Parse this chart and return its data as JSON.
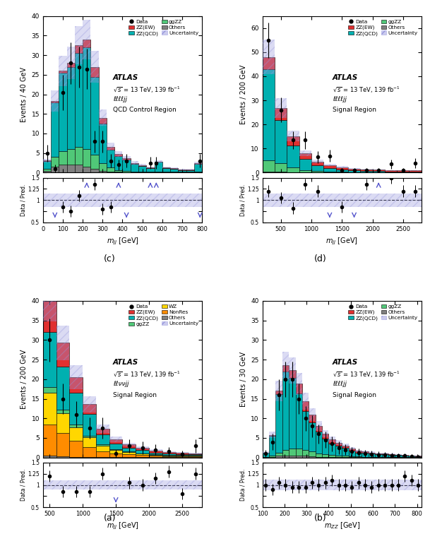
{
  "panel_a": {
    "title": "QCD Control Region",
    "xlabel": "$m_{jj}$ [GeV]",
    "ylabel": "Events / 40 GeV",
    "label_text": "ℓℓℓℓjj",
    "xlim": [
      0,
      800
    ],
    "ylim": [
      0,
      40
    ],
    "ratio_ylim": [
      0.5,
      1.5
    ],
    "bin_edges": [
      0,
      40,
      80,
      120,
      160,
      200,
      240,
      280,
      320,
      360,
      400,
      440,
      480,
      520,
      560,
      600,
      640,
      680,
      720,
      760,
      800
    ],
    "ZZ_QCD": [
      2.0,
      14.0,
      20.0,
      21.0,
      24.0,
      26.0,
      20.0,
      10.0,
      4.5,
      3.5,
      3.0,
      2.0,
      1.5,
      1.0,
      2.5,
      1.0,
      0.8,
      0.5,
      0.5,
      2.0
    ],
    "ZZ_EW": [
      0.1,
      0.3,
      0.5,
      1.0,
      2.0,
      2.0,
      2.5,
      1.5,
      0.8,
      0.5,
      0.3,
      0.2,
      0.2,
      0.1,
      0.1,
      0.1,
      0.1,
      0.1,
      0.1,
      0.2
    ],
    "ggZZ": [
      0.5,
      2.5,
      3.5,
      4.0,
      4.5,
      4.5,
      3.5,
      2.0,
      1.0,
      0.5,
      0.3,
      0.2,
      0.1,
      0.1,
      0.1,
      0.1,
      0.1,
      0.1,
      0.1,
      0.1
    ],
    "Others": [
      0.5,
      1.5,
      2.0,
      2.0,
      2.0,
      1.5,
      1.0,
      0.5,
      0.3,
      0.2,
      0.1,
      0.1,
      0.1,
      0.1,
      0.1,
      0.1,
      0.1,
      0.1,
      0.1,
      0.1
    ],
    "data_x": [
      20,
      60,
      100,
      140,
      180,
      220,
      260,
      300,
      340,
      380,
      420,
      540,
      570,
      790
    ],
    "data_y": [
      5.0,
      1.0,
      20.5,
      28.0,
      27.0,
      26.5,
      8.0,
      8.0,
      3.0,
      2.0,
      3.0,
      2.5,
      2.5,
      3.0
    ],
    "data_yerr": [
      2.2,
      1.0,
      4.5,
      5.3,
      5.2,
      5.2,
      2.8,
      2.8,
      1.7,
      1.4,
      1.7,
      1.6,
      1.6,
      1.7
    ],
    "ratio_x": [
      20,
      60,
      100,
      140,
      180,
      220,
      260,
      300,
      340,
      380,
      420,
      540,
      570,
      790
    ],
    "ratio_y": [
      1.6,
      0.6,
      0.85,
      0.75,
      1.1,
      1.25,
      1.35,
      0.8,
      0.85,
      0.65,
      1.5,
      1.5,
      1.5,
      0.6
    ],
    "ratio_up": [
      220,
      380,
      540,
      570
    ],
    "ratio_down": [
      60,
      420,
      790
    ],
    "unc_band_lo": 0.85,
    "unc_band_hi": 1.15
  },
  "panel_b": {
    "title": "Signal Region",
    "xlabel": "$m_{jj}$ [GeV]",
    "ylabel": "Events / 200 GeV",
    "label_text": "ℓℓℓℓjj",
    "xlim": [
      200,
      2800
    ],
    "ylim": [
      0,
      65
    ],
    "ratio_ylim": [
      0.5,
      1.5
    ],
    "bin_edges": [
      200,
      400,
      600,
      800,
      1000,
      1200,
      1400,
      1600,
      1800,
      2000,
      2200,
      2400,
      2600,
      2800
    ],
    "ZZ_QCD": [
      38.0,
      18.0,
      9.0,
      4.5,
      2.5,
      1.5,
      1.0,
      0.7,
      0.5,
      0.4,
      0.3,
      0.3,
      0.3
    ],
    "ZZ_EW": [
      5.0,
      5.0,
      4.0,
      2.5,
      1.5,
      1.2,
      1.0,
      0.8,
      0.7,
      0.6,
      0.5,
      0.5,
      0.5
    ],
    "ggZZ": [
      4.5,
      3.5,
      2.0,
      1.0,
      0.5,
      0.3,
      0.2,
      0.1,
      0.1,
      0.1,
      0.1,
      0.1,
      0.1
    ],
    "Others": [
      0.5,
      0.3,
      0.2,
      0.1,
      0.1,
      0.1,
      0.1,
      0.1,
      0.1,
      0.1,
      0.1,
      0.1,
      0.1
    ],
    "data_x": [
      300,
      500,
      700,
      900,
      1100,
      1300,
      1500,
      1700,
      1900,
      2100,
      2300,
      2500,
      2700
    ],
    "data_y": [
      55.0,
      26.0,
      13.5,
      13.5,
      6.5,
      7.0,
      1.0,
      1.0,
      1.0,
      1.0,
      3.5,
      1.0,
      4.0
    ],
    "data_yerr": [
      7.4,
      5.1,
      3.7,
      3.7,
      2.5,
      2.6,
      1.0,
      1.0,
      1.0,
      1.0,
      1.9,
      1.0,
      2.0
    ],
    "ratio_x": [
      300,
      500,
      700,
      900,
      1100,
      1300,
      1500,
      1700,
      1900,
      2100,
      2300,
      2500,
      2700
    ],
    "ratio_y": [
      1.2,
      1.05,
      0.82,
      1.35,
      1.2,
      0.6,
      0.85,
      0.6,
      1.35,
      0.55,
      1.5,
      1.2,
      1.2
    ],
    "ratio_up": [
      2100
    ],
    "ratio_down": [
      1300,
      1700
    ],
    "unc_band_lo": 0.85,
    "unc_band_hi": 1.15
  },
  "panel_c": {
    "title": "Signal Region",
    "xlabel": "$m_{jj}$ [GeV]",
    "ylabel": "Events / 200 GeV",
    "label_text": "ℓℓννjj",
    "xlim": [
      400,
      2800
    ],
    "ylim": [
      0,
      40
    ],
    "ratio_ylim": [
      0.5,
      1.5
    ],
    "bin_edges": [
      400,
      600,
      800,
      1000,
      1200,
      1400,
      1600,
      1800,
      2000,
      2200,
      2400,
      2600,
      2800
    ],
    "ZZ_QCD": [
      14.0,
      11.0,
      8.0,
      5.5,
      2.5,
      1.5,
      1.0,
      0.8,
      0.5,
      0.4,
      0.3,
      0.2
    ],
    "ZZ_EW": [
      9.0,
      6.0,
      4.0,
      2.5,
      1.5,
      1.0,
      0.8,
      0.6,
      0.5,
      0.4,
      0.3,
      0.3
    ],
    "ggZZ": [
      1.5,
      1.0,
      0.8,
      0.5,
      0.3,
      0.2,
      0.1,
      0.1,
      0.1,
      0.1,
      0.1,
      0.1
    ],
    "WZ": [
      8.0,
      5.0,
      3.5,
      2.5,
      1.5,
      0.8,
      0.5,
      0.4,
      0.3,
      0.2,
      0.2,
      0.2
    ],
    "NonRes": [
      8.0,
      6.0,
      4.0,
      2.5,
      1.5,
      1.0,
      0.8,
      0.5,
      0.3,
      0.2,
      0.2,
      0.2
    ],
    "Others": [
      0.5,
      0.3,
      0.2,
      0.1,
      0.1,
      0.1,
      0.1,
      0.1,
      0.1,
      0.1,
      0.1,
      0.1
    ],
    "data_x": [
      500,
      700,
      900,
      1100,
      1300,
      1500,
      1700,
      1900,
      2100,
      2300,
      2500,
      2700
    ],
    "data_y": [
      30.0,
      15.0,
      11.0,
      7.5,
      7.5,
      1.0,
      3.0,
      2.5,
      2.0,
      1.5,
      0.8,
      3.0
    ],
    "data_yerr": [
      5.5,
      3.9,
      3.3,
      2.7,
      2.7,
      1.0,
      1.7,
      1.6,
      1.4,
      1.2,
      0.9,
      1.7
    ],
    "ratio_x": [
      500,
      700,
      900,
      1100,
      1300,
      1500,
      1700,
      1900,
      2100,
      2300,
      2500,
      2700
    ],
    "ratio_y": [
      1.2,
      0.85,
      0.85,
      0.85,
      1.25,
      1.0,
      1.05,
      1.0,
      1.15,
      1.3,
      0.8,
      1.25
    ],
    "ratio_up": [],
    "ratio_down": [
      1500
    ],
    "unc_band_lo": 0.9,
    "unc_band_hi": 1.1
  },
  "panel_d": {
    "title": "Signal Region",
    "xlabel": "$m_{ZZ}$ [GeV]",
    "ylabel": "Events / 30 GeV",
    "label_text": "ℓℓℓℓjj",
    "xlim": [
      100,
      820
    ],
    "ylim": [
      0,
      40
    ],
    "ratio_ylim": [
      0.5,
      1.5
    ],
    "bin_edges": [
      100,
      130,
      160,
      190,
      220,
      250,
      280,
      310,
      340,
      370,
      400,
      430,
      460,
      490,
      520,
      550,
      580,
      610,
      640,
      670,
      700,
      730,
      760,
      790,
      820
    ],
    "ZZ_QCD": [
      1.0,
      5.0,
      15.0,
      20.0,
      18.0,
      14.0,
      10.0,
      7.5,
      5.5,
      4.0,
      3.0,
      2.5,
      2.0,
      1.5,
      1.0,
      1.0,
      0.8,
      0.7,
      0.6,
      0.5,
      0.4,
      0.3,
      0.2,
      0.1
    ],
    "ZZ_EW": [
      0.1,
      0.3,
      0.8,
      1.5,
      2.0,
      2.5,
      2.5,
      2.0,
      1.5,
      1.2,
      1.0,
      0.8,
      0.7,
      0.5,
      0.4,
      0.3,
      0.3,
      0.2,
      0.2,
      0.2,
      0.1,
      0.1,
      0.1,
      0.1
    ],
    "ggZZ": [
      0.1,
      0.3,
      0.8,
      1.5,
      1.8,
      1.8,
      1.5,
      1.2,
      0.9,
      0.7,
      0.5,
      0.4,
      0.3,
      0.2,
      0.2,
      0.1,
      0.1,
      0.1,
      0.1,
      0.1,
      0.1,
      0.1,
      0.1,
      0.1
    ],
    "Others": [
      0.1,
      0.2,
      0.4,
      0.5,
      0.5,
      0.5,
      0.4,
      0.3,
      0.2,
      0.2,
      0.1,
      0.1,
      0.1,
      0.1,
      0.1,
      0.1,
      0.1,
      0.1,
      0.1,
      0.1,
      0.1,
      0.1,
      0.1,
      0.1
    ],
    "data_x": [
      115,
      145,
      175,
      205,
      235,
      265,
      295,
      325,
      355,
      385,
      415,
      445,
      475,
      505,
      535,
      565,
      595,
      625,
      655,
      685,
      715,
      745,
      775,
      805
    ],
    "data_y": [
      1.0,
      4.0,
      16.0,
      20.0,
      20.0,
      15.0,
      10.0,
      8.0,
      6.0,
      4.5,
      3.5,
      2.5,
      2.0,
      1.5,
      1.2,
      1.0,
      0.8,
      0.7,
      0.6,
      0.5,
      0.4,
      0.4,
      0.3,
      0.2
    ],
    "data_yerr": [
      1.0,
      2.0,
      4.0,
      4.5,
      4.5,
      3.9,
      3.2,
      2.8,
      2.4,
      2.1,
      1.9,
      1.6,
      1.4,
      1.2,
      1.1,
      1.0,
      0.9,
      0.8,
      0.8,
      0.7,
      0.6,
      0.6,
      0.5,
      0.4
    ],
    "ratio_x": [
      115,
      145,
      175,
      205,
      235,
      265,
      295,
      325,
      355,
      385,
      415,
      445,
      475,
      505,
      535,
      565,
      595,
      625,
      655,
      685,
      715,
      745,
      775,
      805
    ],
    "ratio_y": [
      1.0,
      0.9,
      1.05,
      1.0,
      0.95,
      0.95,
      0.95,
      1.05,
      1.0,
      1.05,
      1.1,
      1.0,
      1.0,
      0.95,
      1.05,
      1.0,
      0.95,
      1.0,
      1.0,
      1.0,
      1.0,
      1.2,
      1.1,
      1.0
    ],
    "ratio_up": [],
    "ratio_down": [],
    "unc_band_lo": 0.88,
    "unc_band_hi": 1.12
  },
  "colors": {
    "ZZ_QCD": "#00b0b0",
    "ZZ_EW": "#e03030",
    "ggZZ": "#50c878",
    "Others": "#808080",
    "WZ": "#ffd700",
    "NonRes": "#ff8c00",
    "uncertainty": "#9999dd",
    "data": "#000000"
  }
}
